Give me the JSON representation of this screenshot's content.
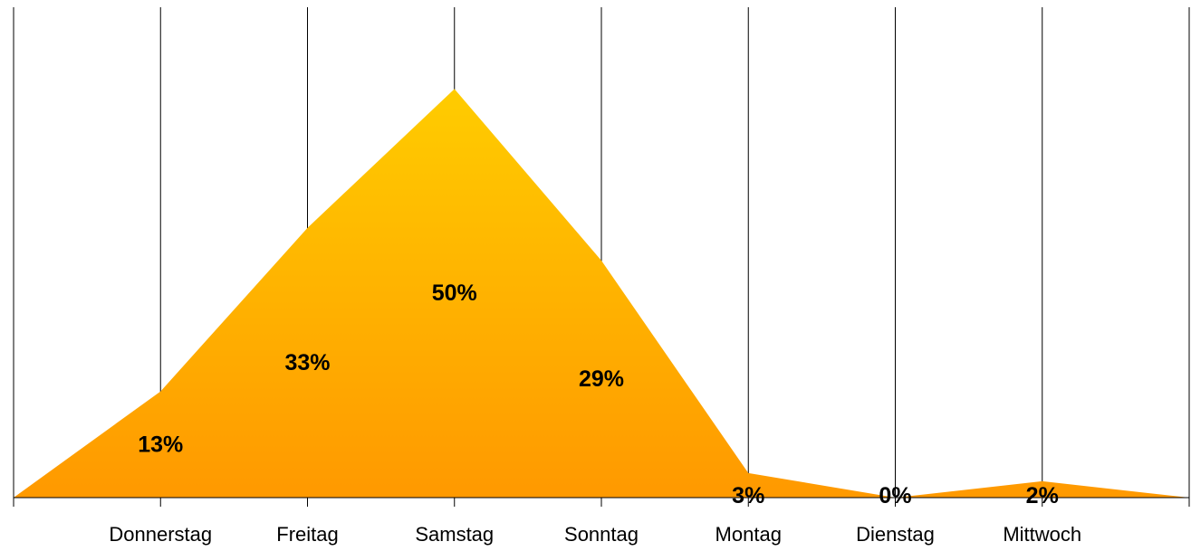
{
  "chart_data": {
    "type": "area",
    "x": [
      "",
      "Donnerstag",
      "Freitag",
      "Samstag",
      "Sonntag",
      "Montag",
      "Dienstag",
      "Mittwoch",
      ""
    ],
    "series": [
      {
        "values": [
          0,
          13,
          33,
          50,
          29,
          3,
          0,
          2,
          0
        ]
      }
    ],
    "data_labels": [
      "",
      "13%",
      "33%",
      "50%",
      "29%",
      "3%",
      "0%",
      "2%",
      ""
    ],
    "ylim": [
      0,
      60
    ],
    "grid": "vertical",
    "legend": "none",
    "colors": {
      "fill_top": "#ffcc00",
      "fill_bottom": "#ff9900",
      "grid": "#000000",
      "axis": "#000000"
    }
  }
}
